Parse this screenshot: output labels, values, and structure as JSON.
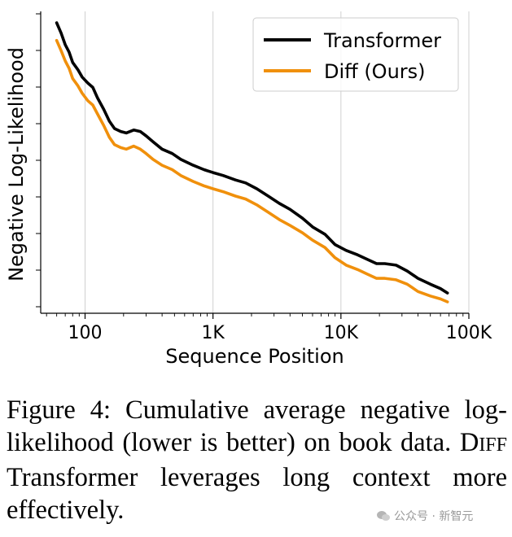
{
  "chart_data": {
    "type": "line",
    "title": "",
    "xlabel": "Sequence Position",
    "ylabel": "Negative Log-Likelihood",
    "xscale": "log",
    "xlim": [
      45,
      100000
    ],
    "ylim": [
      0,
      1
    ],
    "xticks": [
      {
        "value": 100,
        "label": "100"
      },
      {
        "value": 1000,
        "label": "1K"
      },
      {
        "value": 10000,
        "label": "10K"
      },
      {
        "value": 100000,
        "label": "100K"
      }
    ],
    "y_tick_labels_shown": false,
    "grid": "vertical",
    "legend_position": "top-right",
    "series": [
      {
        "name": "Transformer",
        "color": "#000000",
        "points": [
          [
            60,
            0.975
          ],
          [
            65,
            0.94
          ],
          [
            70,
            0.9
          ],
          [
            75,
            0.875
          ],
          [
            80,
            0.84
          ],
          [
            88,
            0.815
          ],
          [
            95,
            0.79
          ],
          [
            105,
            0.77
          ],
          [
            115,
            0.755
          ],
          [
            125,
            0.72
          ],
          [
            140,
            0.68
          ],
          [
            155,
            0.64
          ],
          [
            170,
            0.615
          ],
          [
            190,
            0.605
          ],
          [
            210,
            0.6
          ],
          [
            240,
            0.61
          ],
          [
            270,
            0.605
          ],
          [
            300,
            0.59
          ],
          [
            340,
            0.57
          ],
          [
            400,
            0.545
          ],
          [
            480,
            0.53
          ],
          [
            560,
            0.51
          ],
          [
            700,
            0.49
          ],
          [
            850,
            0.475
          ],
          [
            1000,
            0.465
          ],
          [
            1200,
            0.455
          ],
          [
            1500,
            0.44
          ],
          [
            1800,
            0.43
          ],
          [
            2200,
            0.41
          ],
          [
            2700,
            0.385
          ],
          [
            3300,
            0.36
          ],
          [
            4000,
            0.34
          ],
          [
            5000,
            0.31
          ],
          [
            6000,
            0.28
          ],
          [
            7500,
            0.255
          ],
          [
            9000,
            0.22
          ],
          [
            11000,
            0.2
          ],
          [
            13500,
            0.185
          ],
          [
            16000,
            0.17
          ],
          [
            19000,
            0.155
          ],
          [
            22000,
            0.155
          ],
          [
            27000,
            0.15
          ],
          [
            33000,
            0.13
          ],
          [
            40000,
            0.105
          ],
          [
            50000,
            0.085
          ],
          [
            60000,
            0.07
          ],
          [
            68000,
            0.055
          ]
        ]
      },
      {
        "name": "Diff (Ours)",
        "color": "#f0900c",
        "points": [
          [
            60,
            0.915
          ],
          [
            65,
            0.88
          ],
          [
            70,
            0.845
          ],
          [
            75,
            0.82
          ],
          [
            80,
            0.785
          ],
          [
            88,
            0.76
          ],
          [
            95,
            0.735
          ],
          [
            105,
            0.71
          ],
          [
            115,
            0.695
          ],
          [
            125,
            0.665
          ],
          [
            140,
            0.625
          ],
          [
            155,
            0.585
          ],
          [
            170,
            0.56
          ],
          [
            190,
            0.55
          ],
          [
            210,
            0.545
          ],
          [
            240,
            0.555
          ],
          [
            270,
            0.545
          ],
          [
            300,
            0.53
          ],
          [
            340,
            0.51
          ],
          [
            400,
            0.49
          ],
          [
            480,
            0.475
          ],
          [
            560,
            0.455
          ],
          [
            700,
            0.435
          ],
          [
            850,
            0.42
          ],
          [
            1000,
            0.41
          ],
          [
            1200,
            0.4
          ],
          [
            1500,
            0.385
          ],
          [
            1800,
            0.375
          ],
          [
            2200,
            0.355
          ],
          [
            2700,
            0.33
          ],
          [
            3300,
            0.305
          ],
          [
            4000,
            0.285
          ],
          [
            5000,
            0.26
          ],
          [
            6000,
            0.235
          ],
          [
            7500,
            0.21
          ],
          [
            9000,
            0.175
          ],
          [
            11000,
            0.15
          ],
          [
            13500,
            0.135
          ],
          [
            16000,
            0.12
          ],
          [
            19000,
            0.105
          ],
          [
            22000,
            0.105
          ],
          [
            27000,
            0.1
          ],
          [
            33000,
            0.085
          ],
          [
            40000,
            0.06
          ],
          [
            50000,
            0.045
          ],
          [
            60000,
            0.035
          ],
          [
            68000,
            0.025
          ]
        ]
      }
    ]
  },
  "caption": {
    "part1": "Figure 4: Cumulative average negative log-likelihood (lower is better) on book data. D",
    "smallcaps": "IFF",
    "part2": " Transformer leverages long context more effectively."
  },
  "watermark": {
    "text": "公众号 · 新智元",
    "icon": "wechat-icon"
  }
}
